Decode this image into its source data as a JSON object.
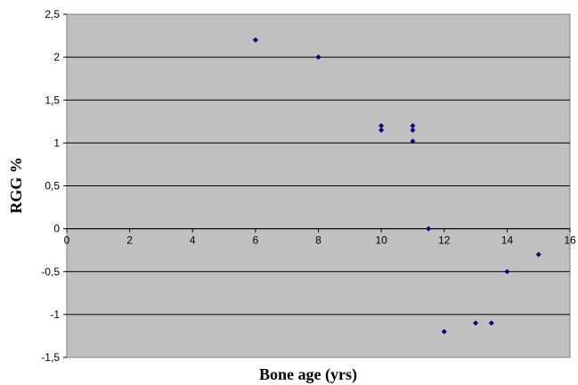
{
  "chart_data": {
    "type": "scatter",
    "title": "",
    "xlabel": "Bone age (yrs)",
    "ylabel": "RGG %",
    "xlim": [
      0,
      16
    ],
    "ylim": [
      -1.5,
      2.5
    ],
    "x_ticks": [
      "0",
      "2",
      "4",
      "6",
      "8",
      "10",
      "12",
      "14",
      "16"
    ],
    "y_ticks": [
      "2,5",
      "2",
      "1,5",
      "1",
      "0,5",
      "0",
      "-0,5",
      "-1",
      "-1,5"
    ],
    "y_tick_values": [
      2.5,
      2,
      1.5,
      1,
      0.5,
      0,
      -0.5,
      -1,
      -1.5
    ],
    "grid": "horizontal",
    "legend": "none",
    "plot_background": "#c0c0c0",
    "marker_color": "#000080",
    "points": [
      {
        "x": 6,
        "y": 2.2
      },
      {
        "x": 8,
        "y": 2.0
      },
      {
        "x": 10,
        "y": 1.2
      },
      {
        "x": 10,
        "y": 1.15
      },
      {
        "x": 11,
        "y": 1.2
      },
      {
        "x": 11,
        "y": 1.15
      },
      {
        "x": 11,
        "y": 1.02
      },
      {
        "x": 11.5,
        "y": 0.0
      },
      {
        "x": 12,
        "y": -1.2
      },
      {
        "x": 13,
        "y": -1.1
      },
      {
        "x": 13.5,
        "y": -1.1
      },
      {
        "x": 14,
        "y": -0.5
      },
      {
        "x": 15,
        "y": -0.3
      }
    ]
  }
}
